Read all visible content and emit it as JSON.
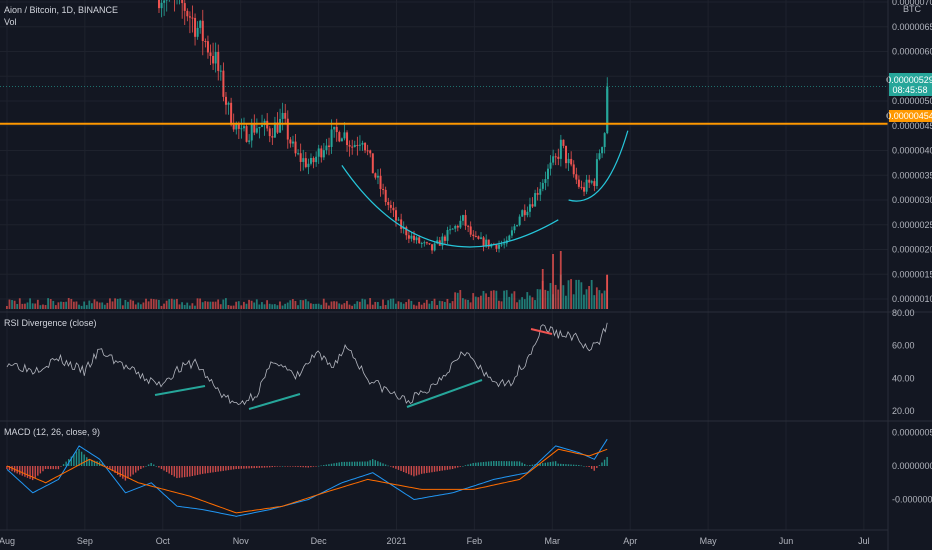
{
  "header": {
    "symbol_line": "Aion / Bitcoin, 1D, BINANCE",
    "volume_label": "Vol"
  },
  "price_axis": {
    "currency": "BTC",
    "ticks": [
      "0.00000700",
      "0.00000650",
      "0.00000600",
      "0.00000550",
      "0.00000500",
      "0.00000450",
      "0.00000400",
      "0.00000350",
      "0.00000300",
      "0.00000250",
      "0.00000200",
      "0.00000150",
      "0.00000100"
    ],
    "last_price_label": "0.00000529",
    "countdown_label": "08:45:58",
    "level_label": "0.00000454"
  },
  "rsi": {
    "title": "RSI Divergence (close)",
    "ticks": [
      "80.00",
      "60.00",
      "40.00",
      "20.00"
    ]
  },
  "macd": {
    "title": "MACD (12, 26, close, 9)",
    "ticks": [
      "0.00000050",
      "0.00000000",
      "-0.00000050"
    ]
  },
  "time_axis": {
    "labels": [
      "Aug",
      "Sep",
      "Oct",
      "Nov",
      "Dec",
      "2021",
      "Feb",
      "Mar",
      "Apr",
      "May",
      "Jun",
      "Jul"
    ]
  },
  "colors": {
    "background": "#131722",
    "up": "#26a69a",
    "down": "#ef5350",
    "level_line": "#ff9800",
    "cup_curve": "#26c6da",
    "rsi_line": "#b2b5be",
    "macd_line": "#2196f3",
    "signal_line": "#ff6d00",
    "last_price_badge": "#26a69a"
  },
  "chart_data": {
    "type": "candlestick",
    "title": "Aion / Bitcoin, 1D, BINANCE",
    "y_unit": "BTC",
    "ylim": [
      8e-07,
      7.2e-06
    ],
    "x_months": [
      "Aug",
      "Sep",
      "Oct",
      "Nov",
      "Dec",
      "2021",
      "Feb",
      "Mar",
      "Apr",
      "May",
      "Jun",
      "Jul"
    ],
    "price_path": [
      [
        "2020-09-28",
        7.2e-06
      ],
      [
        "2020-10-08",
        6.9e-06
      ],
      [
        "2020-10-15",
        6.3e-06
      ],
      [
        "2020-10-20",
        5.8e-06
      ],
      [
        "2020-10-25",
        4.8e-06
      ],
      [
        "2020-10-30",
        4.3e-06
      ],
      [
        "2020-11-05",
        4.5e-06
      ],
      [
        "2020-11-10",
        4.4e-06
      ],
      [
        "2020-11-15",
        4.6e-06
      ],
      [
        "2020-11-20",
        3.9e-06
      ],
      [
        "2020-11-26",
        3.7e-06
      ],
      [
        "2020-12-02",
        4.2e-06
      ],
      [
        "2020-12-08",
        4.4e-06
      ],
      [
        "2020-12-12",
        4.1e-06
      ],
      [
        "2020-12-16",
        4.3e-06
      ],
      [
        "2020-12-20",
        3.6e-06
      ],
      [
        "2020-12-25",
        3e-06
      ],
      [
        "2020-12-30",
        2.5e-06
      ],
      [
        "2021-01-05",
        2.2e-06
      ],
      [
        "2021-01-12",
        2e-06
      ],
      [
        "2021-01-18",
        2.3e-06
      ],
      [
        "2021-01-24",
        2.6e-06
      ],
      [
        "2021-01-28",
        2.2e-06
      ],
      [
        "2021-02-04",
        2.1e-06
      ],
      [
        "2021-02-10",
        2.1e-06
      ],
      [
        "2021-02-15",
        2.7e-06
      ],
      [
        "2021-02-20",
        3e-06
      ],
      [
        "2021-02-25",
        3.5e-06
      ],
      [
        "2021-03-01",
        3.8e-06
      ],
      [
        "2021-03-03",
        4.1e-06
      ],
      [
        "2021-03-07",
        3.6e-06
      ],
      [
        "2021-03-11",
        3.2e-06
      ],
      [
        "2021-03-16",
        3.4e-06
      ],
      [
        "2021-03-18",
        4e-06
      ],
      [
        "2021-03-20",
        4.4e-06
      ],
      [
        "2021-03-21",
        5.29e-06
      ]
    ],
    "horizontal_level": 4.54e-06,
    "last_price": 5.29e-06,
    "rsi_ylim": [
      15,
      80
    ],
    "rsi_path": [
      [
        "2020-07-31",
        50
      ],
      [
        "2020-08-10",
        45
      ],
      [
        "2020-08-20",
        52
      ],
      [
        "2020-08-30",
        44
      ],
      [
        "2020-09-05",
        57
      ],
      [
        "2020-09-12",
        50
      ],
      [
        "2020-09-20",
        42
      ],
      [
        "2020-09-28",
        36
      ],
      [
        "2020-10-05",
        45
      ],
      [
        "2020-10-12",
        50
      ],
      [
        "2020-10-20",
        34
      ],
      [
        "2020-10-28",
        23
      ],
      [
        "2020-11-05",
        31
      ],
      [
        "2020-11-12",
        52
      ],
      [
        "2020-11-20",
        40
      ],
      [
        "2020-11-28",
        55
      ],
      [
        "2020-12-04",
        47
      ],
      [
        "2020-12-10",
        60
      ],
      [
        "2020-12-18",
        40
      ],
      [
        "2020-12-26",
        32
      ],
      [
        "2021-01-02",
        26
      ],
      [
        "2021-01-10",
        32
      ],
      [
        "2021-01-18",
        45
      ],
      [
        "2021-01-24",
        58
      ],
      [
        "2021-02-02",
        41
      ],
      [
        "2021-02-10",
        35
      ],
      [
        "2021-02-18",
        52
      ],
      [
        "2021-02-24",
        72
      ],
      [
        "2021-03-02",
        67
      ],
      [
        "2021-03-08",
        66
      ],
      [
        "2021-03-14",
        57
      ],
      [
        "2021-03-18",
        62
      ],
      [
        "2021-03-21",
        74
      ]
    ],
    "macd_ylim": [
      -9e-07,
      5e-07
    ],
    "macd_path": [
      [
        "2020-07-31",
        -5e-08
      ],
      [
        "2020-08-10",
        -4e-07
      ],
      [
        "2020-08-20",
        -2e-07
      ],
      [
        "2020-08-28",
        3e-07
      ],
      [
        "2020-09-05",
        1e-07
      ],
      [
        "2020-09-15",
        -4e-07
      ],
      [
        "2020-09-25",
        -2.5e-07
      ],
      [
        "2020-10-05",
        -6e-07
      ],
      [
        "2020-10-15",
        -6.5e-07
      ],
      [
        "2020-10-28",
        -7.5e-07
      ],
      [
        "2020-11-10",
        -6.5e-07
      ],
      [
        "2020-11-25",
        -5e-07
      ],
      [
        "2020-12-08",
        -2.5e-07
      ],
      [
        "2020-12-20",
        -1e-07
      ],
      [
        "2021-01-05",
        -5e-07
      ],
      [
        "2021-01-20",
        -4e-07
      ],
      [
        "2021-02-05",
        -2e-07
      ],
      [
        "2021-02-18",
        -1e-07
      ],
      [
        "2021-03-01",
        3e-07
      ],
      [
        "2021-03-10",
        2e-07
      ],
      [
        "2021-03-16",
        1e-07
      ],
      [
        "2021-03-21",
        4e-07
      ]
    ],
    "signal_path": [
      [
        "2020-07-31",
        0.0
      ],
      [
        "2020-08-15",
        -2.5e-07
      ],
      [
        "2020-09-01",
        1e-07
      ],
      [
        "2020-09-20",
        -2.5e-07
      ],
      [
        "2020-10-10",
        -4.5e-07
      ],
      [
        "2020-10-28",
        -7e-07
      ],
      [
        "2020-11-15",
        -6e-07
      ],
      [
        "2020-12-01",
        -4e-07
      ],
      [
        "2020-12-18",
        -2e-07
      ],
      [
        "2021-01-08",
        -3.5e-07
      ],
      [
        "2021-01-28",
        -3.5e-07
      ],
      [
        "2021-02-15",
        -2e-07
      ],
      [
        "2021-03-02",
        2.5e-07
      ],
      [
        "2021-03-14",
        1.5e-07
      ],
      [
        "2021-03-21",
        2.5e-07
      ]
    ]
  }
}
